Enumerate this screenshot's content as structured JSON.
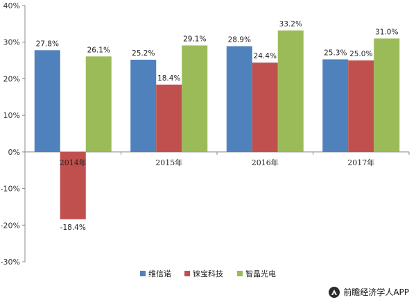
{
  "chart_data": {
    "type": "bar",
    "categories": [
      "2014年",
      "2015年",
      "2016年",
      "2017年"
    ],
    "series": [
      {
        "name": "维信诺",
        "color": "#4F81BD",
        "values": [
          27.8,
          25.2,
          28.9,
          25.3
        ],
        "labels": [
          "27.8%",
          "25.2%",
          "28.9%",
          "25.3%"
        ]
      },
      {
        "name": "铼宝科技",
        "color": "#C0504D",
        "values": [
          -18.4,
          18.4,
          24.4,
          25.0
        ],
        "labels": [
          "-18.4%",
          "18.4%",
          "24.4%",
          "25.0%"
        ]
      },
      {
        "name": "智晶光电",
        "color": "#9BBB59",
        "values": [
          26.1,
          29.1,
          33.2,
          31.0
        ],
        "labels": [
          "26.1%",
          "29.1%",
          "33.2%",
          "31.0%"
        ]
      }
    ],
    "ylim": [
      -30,
      40
    ],
    "yticks": [
      -30,
      -20,
      -10,
      0,
      10,
      20,
      30,
      40
    ],
    "ytick_labels": [
      "-30%",
      "-20%",
      "-10%",
      "0%",
      "10%",
      "20%",
      "30%",
      "40%"
    ],
    "grid": false,
    "legend_position": "bottom",
    "title": "",
    "xlabel": "",
    "ylabel": ""
  },
  "footer": {
    "text": "前瞻经济学人APP",
    "icon": "qianzhan-logo-icon"
  }
}
